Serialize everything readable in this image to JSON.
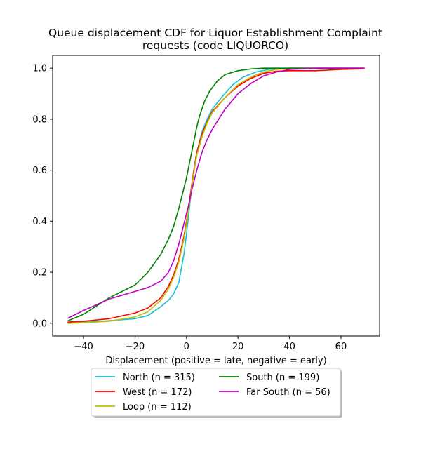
{
  "chart_data": {
    "type": "line",
    "title_lines": [
      "Queue displacement CDF for Liquor Establishment Complaint",
      "requests (code LIQUORCO)"
    ],
    "xlabel": "Displacement (positive = late, negative = early)",
    "ylabel": "",
    "xlim": [
      -52,
      75
    ],
    "ylim": [
      -0.05,
      1.05
    ],
    "xticks": [
      -40,
      -20,
      0,
      20,
      40,
      60
    ],
    "xtick_labels": [
      "−40",
      "−20",
      "0",
      "20",
      "40",
      "60"
    ],
    "yticks": [
      0.0,
      0.2,
      0.4,
      0.6,
      0.8,
      1.0
    ],
    "ytick_labels": [
      "0.0",
      "0.2",
      "0.4",
      "0.6",
      "0.8",
      "1.0"
    ],
    "grid": false,
    "legend_position": "below plot, centered",
    "series": [
      {
        "name": "North (n = 315)",
        "color": "#17becf",
        "x": [
          -46,
          -40,
          -30,
          -20,
          -15,
          -10,
          -7,
          -5,
          -3,
          -1,
          0,
          1,
          2,
          3,
          4,
          6,
          8,
          10,
          14,
          18,
          22,
          27,
          32,
          40,
          50,
          60,
          69
        ],
        "y": [
          0.002,
          0.004,
          0.01,
          0.018,
          0.03,
          0.065,
          0.09,
          0.115,
          0.16,
          0.27,
          0.35,
          0.44,
          0.53,
          0.61,
          0.67,
          0.75,
          0.8,
          0.84,
          0.89,
          0.935,
          0.965,
          0.985,
          0.995,
          1.0,
          1.0,
          1.0,
          1.0
        ]
      },
      {
        "name": "West (n = 172)",
        "color": "#ff0000",
        "x": [
          -46,
          -40,
          -30,
          -20,
          -15,
          -10,
          -7,
          -5,
          -3,
          -1,
          0,
          1,
          2,
          3,
          4,
          6,
          8,
          10,
          15,
          20,
          25,
          30,
          35,
          40,
          50,
          60,
          69
        ],
        "y": [
          0.005,
          0.008,
          0.018,
          0.04,
          0.06,
          0.1,
          0.145,
          0.19,
          0.25,
          0.34,
          0.4,
          0.47,
          0.54,
          0.61,
          0.67,
          0.74,
          0.79,
          0.83,
          0.885,
          0.93,
          0.96,
          0.98,
          0.988,
          0.99,
          0.99,
          0.995,
          0.998
        ]
      },
      {
        "name": "Loop (n = 112)",
        "color": "#bfbf00",
        "x": [
          -46,
          -40,
          -30,
          -20,
          -15,
          -10,
          -7,
          -5,
          -3,
          -1,
          0,
          1,
          2,
          3,
          4,
          6,
          8,
          10,
          15,
          20,
          25,
          30,
          35,
          40,
          50,
          60,
          69
        ],
        "y": [
          0.0,
          0.002,
          0.008,
          0.025,
          0.045,
          0.09,
          0.135,
          0.18,
          0.24,
          0.33,
          0.39,
          0.46,
          0.53,
          0.6,
          0.66,
          0.73,
          0.785,
          0.825,
          0.885,
          0.935,
          0.965,
          0.985,
          0.995,
          1.0,
          1.0,
          1.0,
          1.0
        ]
      },
      {
        "name": "South (n = 199)",
        "color": "#008000",
        "x": [
          -46,
          -40,
          -30,
          -20,
          -15,
          -10,
          -7,
          -5,
          -3,
          -1,
          0,
          1,
          2,
          3,
          4,
          5,
          7,
          9,
          12,
          15,
          20,
          25,
          30,
          40,
          50,
          60,
          69
        ],
        "y": [
          0.01,
          0.035,
          0.1,
          0.15,
          0.2,
          0.27,
          0.33,
          0.38,
          0.45,
          0.53,
          0.57,
          0.62,
          0.67,
          0.72,
          0.77,
          0.81,
          0.87,
          0.91,
          0.95,
          0.975,
          0.99,
          0.997,
          1.0,
          1.0,
          1.0,
          1.0,
          1.0
        ]
      },
      {
        "name": "Far South (n = 56)",
        "color": "#bf00bf",
        "x": [
          -46,
          -40,
          -30,
          -25,
          -20,
          -15,
          -10,
          -7,
          -5,
          -3,
          -1,
          0,
          1,
          2,
          3,
          4,
          6,
          8,
          10,
          15,
          20,
          25,
          30,
          35,
          40,
          50,
          60,
          69
        ],
        "y": [
          0.02,
          0.05,
          0.095,
          0.11,
          0.125,
          0.14,
          0.165,
          0.2,
          0.245,
          0.31,
          0.39,
          0.43,
          0.47,
          0.52,
          0.56,
          0.6,
          0.67,
          0.72,
          0.76,
          0.84,
          0.9,
          0.94,
          0.97,
          0.985,
          0.995,
          1.0,
          1.0,
          1.0
        ]
      }
    ]
  }
}
